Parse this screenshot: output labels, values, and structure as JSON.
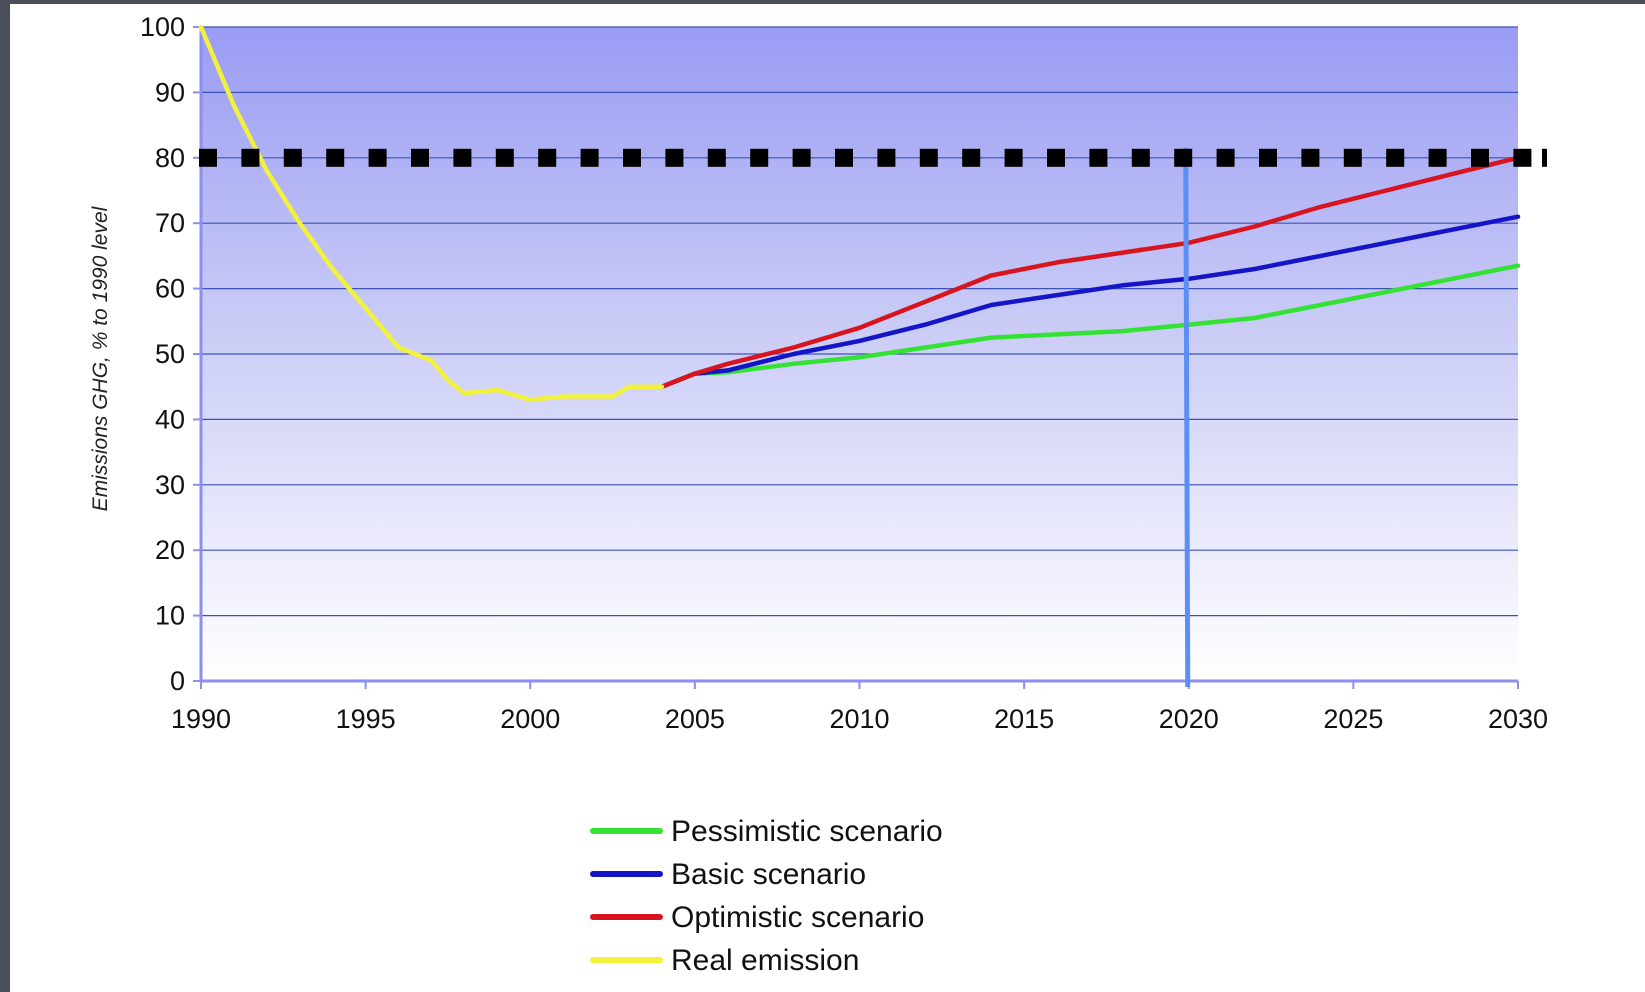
{
  "chart_data": {
    "type": "line",
    "ylabel": "Emissions GHG, % to 1990 level",
    "xlabel": "",
    "xlim": [
      1990,
      2030
    ],
    "ylim": [
      0,
      100
    ],
    "x_ticks": [
      1990,
      1995,
      2000,
      2005,
      2010,
      2015,
      2020,
      2025,
      2030
    ],
    "y_ticks": [
      0,
      10,
      20,
      30,
      40,
      50,
      60,
      70,
      80,
      90,
      100
    ],
    "grid": true,
    "background": "gradient: #9a9cf4 at top to #ffffff at bottom",
    "legend_position": "bottom-center",
    "reference_line": {
      "y": 80,
      "style": "black square dotted"
    },
    "vertical_marker": {
      "x": 2020,
      "color": "#5b8ff5"
    },
    "series": [
      {
        "name": "Pessimistic scenario",
        "color": "#33e233",
        "points": [
          [
            2004,
            45
          ],
          [
            2005,
            47
          ],
          [
            2006,
            47.2
          ],
          [
            2008,
            48.5
          ],
          [
            2010,
            49.5
          ],
          [
            2012,
            51
          ],
          [
            2014,
            52.5
          ],
          [
            2016,
            53
          ],
          [
            2018,
            53.5
          ],
          [
            2020,
            54.5
          ],
          [
            2022,
            55.5
          ],
          [
            2024,
            57.5
          ],
          [
            2026,
            59.5
          ],
          [
            2028,
            61.5
          ],
          [
            2030,
            63.5
          ]
        ]
      },
      {
        "name": "Basic scenario",
        "color": "#1515c8",
        "points": [
          [
            2004,
            45
          ],
          [
            2005,
            47
          ],
          [
            2006,
            47.5
          ],
          [
            2008,
            50
          ],
          [
            2010,
            52
          ],
          [
            2012,
            54.5
          ],
          [
            2014,
            57.5
          ],
          [
            2016,
            59
          ],
          [
            2018,
            60.5
          ],
          [
            2020,
            61.5
          ],
          [
            2022,
            63
          ],
          [
            2024,
            65
          ],
          [
            2026,
            67
          ],
          [
            2028,
            69
          ],
          [
            2030,
            71
          ]
        ]
      },
      {
        "name": "Optimistic scenario",
        "color": "#d8141e",
        "points": [
          [
            2004,
            45
          ],
          [
            2005,
            47
          ],
          [
            2006,
            48.5
          ],
          [
            2008,
            51
          ],
          [
            2010,
            54
          ],
          [
            2012,
            58
          ],
          [
            2014,
            62
          ],
          [
            2016,
            64
          ],
          [
            2018,
            65.5
          ],
          [
            2020,
            67
          ],
          [
            2022,
            69.5
          ],
          [
            2024,
            72.5
          ],
          [
            2026,
            75
          ],
          [
            2028,
            77.5
          ],
          [
            2030,
            80
          ]
        ]
      },
      {
        "name": "Real emission",
        "color": "#f2f23c",
        "points": [
          [
            1990,
            100
          ],
          [
            1991,
            88
          ],
          [
            1992,
            78
          ],
          [
            1993,
            70
          ],
          [
            1994,
            63
          ],
          [
            1995,
            57
          ],
          [
            1996,
            51
          ],
          [
            1997,
            49
          ],
          [
            1997.5,
            46
          ],
          [
            1998,
            44
          ],
          [
            1999,
            44.5
          ],
          [
            2000,
            43
          ],
          [
            2001,
            43.5
          ],
          [
            2002,
            43.5
          ],
          [
            2002.5,
            43.5
          ],
          [
            2003,
            45
          ],
          [
            2004,
            45
          ]
        ]
      }
    ]
  }
}
